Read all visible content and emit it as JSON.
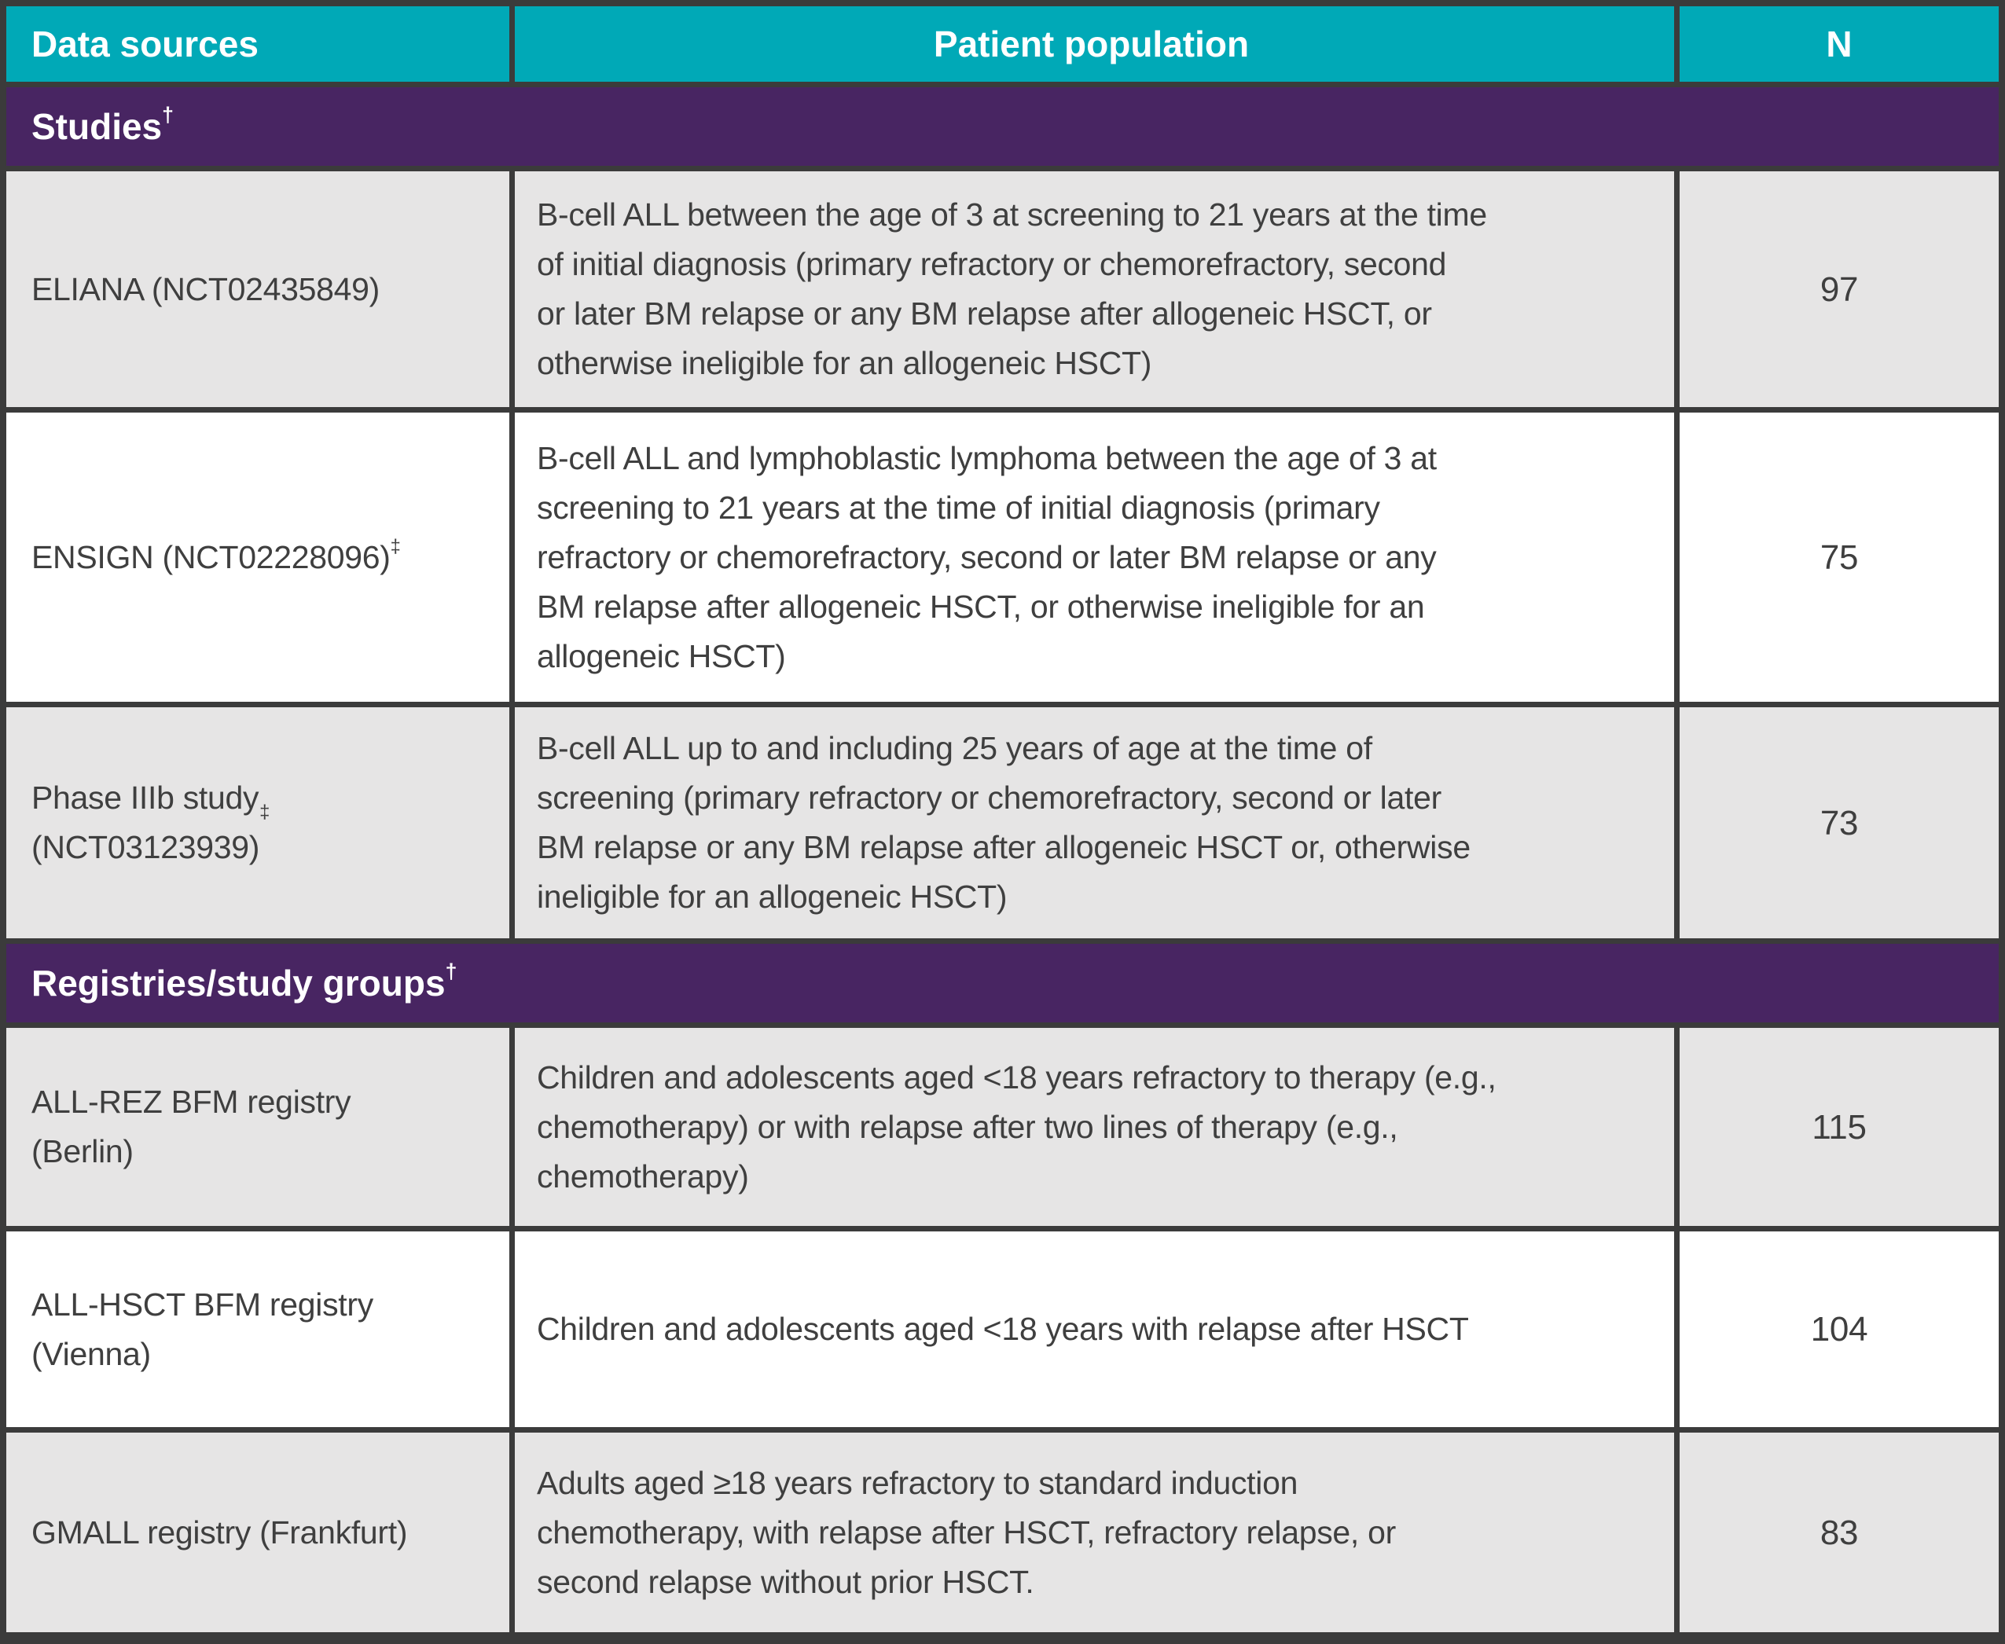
{
  "table": {
    "columns": [
      {
        "label": "Data sources"
      },
      {
        "label": "Patient population"
      },
      {
        "label": "N"
      }
    ],
    "sections": [
      {
        "label": "Studies",
        "sup": "†",
        "rows": [
          {
            "source": "ELIANA (NCT02435849)",
            "source_sup": "",
            "population": "B-cell ALL between the age of 3 at screening to 21 years at the time\nof initial diagnosis (primary refractory or chemorefractory, second\nor later BM relapse or any BM relapse after allogeneic HSCT, or\notherwise ineligible for an allogeneic HSCT)",
            "n": "97"
          },
          {
            "source": "ENSIGN (NCT02228096)",
            "source_sup": "‡",
            "population": "B-cell ALL and lymphoblastic lymphoma between the age of 3 at\nscreening to 21 years at the time of initial diagnosis (primary\nrefractory or chemorefractory, second or later BM relapse or any\nBM relapse after allogeneic HSCT, or otherwise ineligible for an\nallogeneic HSCT)",
            "n": "75"
          },
          {
            "source": "Phase IIIb study\n(NCT03123939)",
            "source_sup": "‡",
            "population": "B-cell ALL up to and including 25 years of age at the time of\nscreening (primary refractory or chemorefractory, second or later\nBM relapse or any BM relapse after allogeneic HSCT or, otherwise\nineligible for an allogeneic HSCT)",
            "n": "73"
          }
        ]
      },
      {
        "label": "Registries/study groups",
        "sup": "†",
        "rows": [
          {
            "source": "ALL-REZ BFM registry\n(Berlin)",
            "source_sup": "",
            "population": "Children and adolescents aged <18 years refractory to therapy (e.g.,\nchemotherapy) or with relapse after two lines of therapy (e.g.,\nchemotherapy)",
            "n": "115"
          },
          {
            "source": "ALL-HSCT BFM registry\n(Vienna)",
            "source_sup": "",
            "population": "Children and adolescents aged <18 years with relapse after HSCT",
            "n": "104"
          },
          {
            "source": "GMALL registry (Frankfurt)",
            "source_sup": "",
            "population": "Adults aged ≥18 years refractory to standard induction\nchemotherapy, with relapse after HSCT, refractory relapse, or\nsecond relapse without prior HSCT.",
            "n": "83"
          }
        ]
      }
    ],
    "colors": {
      "header_teal": "#00a9b7",
      "section_purple": "#482562",
      "border_dark": "#3b3b3b",
      "row_gray": "#e6e5e5",
      "row_white": "#ffffff",
      "text_dark": "#3f3f3f"
    }
  }
}
